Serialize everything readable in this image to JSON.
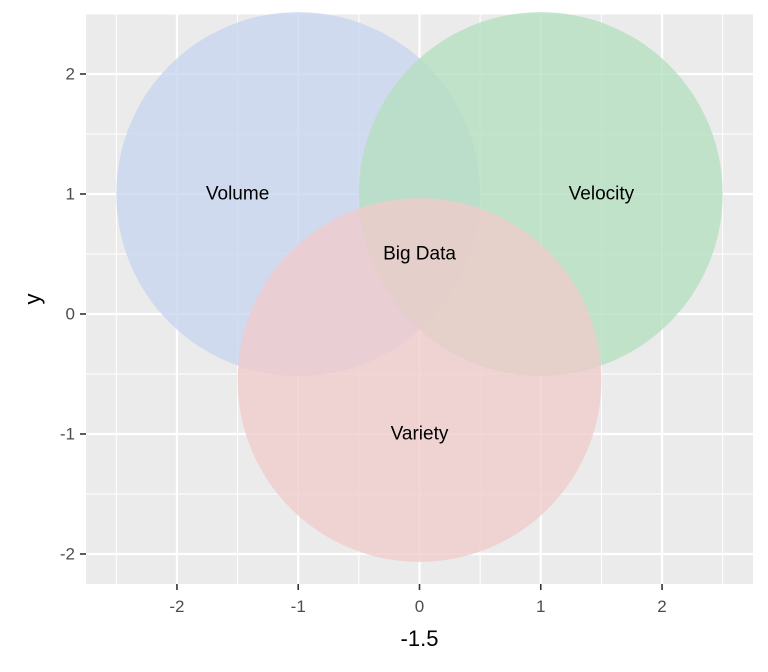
{
  "chart_data": {
    "type": "venn",
    "xlabel": "-1.5",
    "ylabel": "y",
    "xlim": [
      -2.75,
      2.75
    ],
    "ylim": [
      -2.25,
      2.5
    ],
    "x_ticks": [
      -2,
      -1,
      0,
      1,
      2
    ],
    "y_ticks": [
      -2,
      -1,
      0,
      1,
      2
    ],
    "x_tick_labels": [
      "-2",
      "-1",
      "0",
      "1",
      "2"
    ],
    "y_tick_labels": [
      "-2",
      "-1",
      "0",
      "1",
      "2"
    ],
    "grid": true,
    "panel_background": "#ebebeb",
    "grid_color": "#ffffff",
    "circles": [
      {
        "name": "volume",
        "cx": -1.0,
        "cy": 1.0,
        "r": 1.5,
        "color": "#c6d5f0"
      },
      {
        "name": "velocity",
        "cx": 1.0,
        "cy": 1.0,
        "r": 1.5,
        "color": "#b3dfbf"
      },
      {
        "name": "variety",
        "cx": 0.0,
        "cy": -0.55,
        "r": 1.5,
        "color": "#efcbcb"
      }
    ],
    "labels": [
      {
        "text": "Volume",
        "x": -1.5,
        "y": 1.0
      },
      {
        "text": "Velocity",
        "x": 1.5,
        "y": 1.0
      },
      {
        "text": "Variety",
        "x": 0.0,
        "y": -1.0
      },
      {
        "text": "Big Data",
        "x": 0.0,
        "y": 0.5
      }
    ]
  }
}
